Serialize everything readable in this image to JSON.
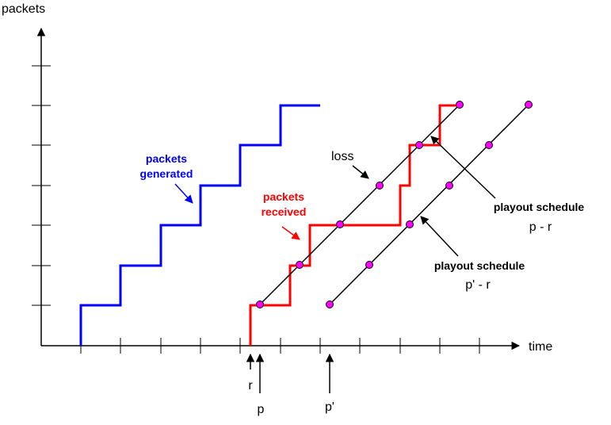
{
  "axes": {
    "y_label": "packets",
    "x_label": "time"
  },
  "annotations": {
    "generated_line1": "packets",
    "generated_line2": "generated",
    "received_line1": "packets",
    "received_line2": "received",
    "loss": "loss",
    "schedule1_title": "playout schedule",
    "schedule1_formula": "p - r",
    "schedule2_title": "playout schedule",
    "schedule2_formula": "p' - r"
  },
  "time_markers": {
    "r": "r",
    "p": "p",
    "p_prime": "p'"
  },
  "colors": {
    "generated": "#0000ff",
    "received": "#ff0000",
    "playout_point": "#ff00ff",
    "axis": "#000000"
  }
}
